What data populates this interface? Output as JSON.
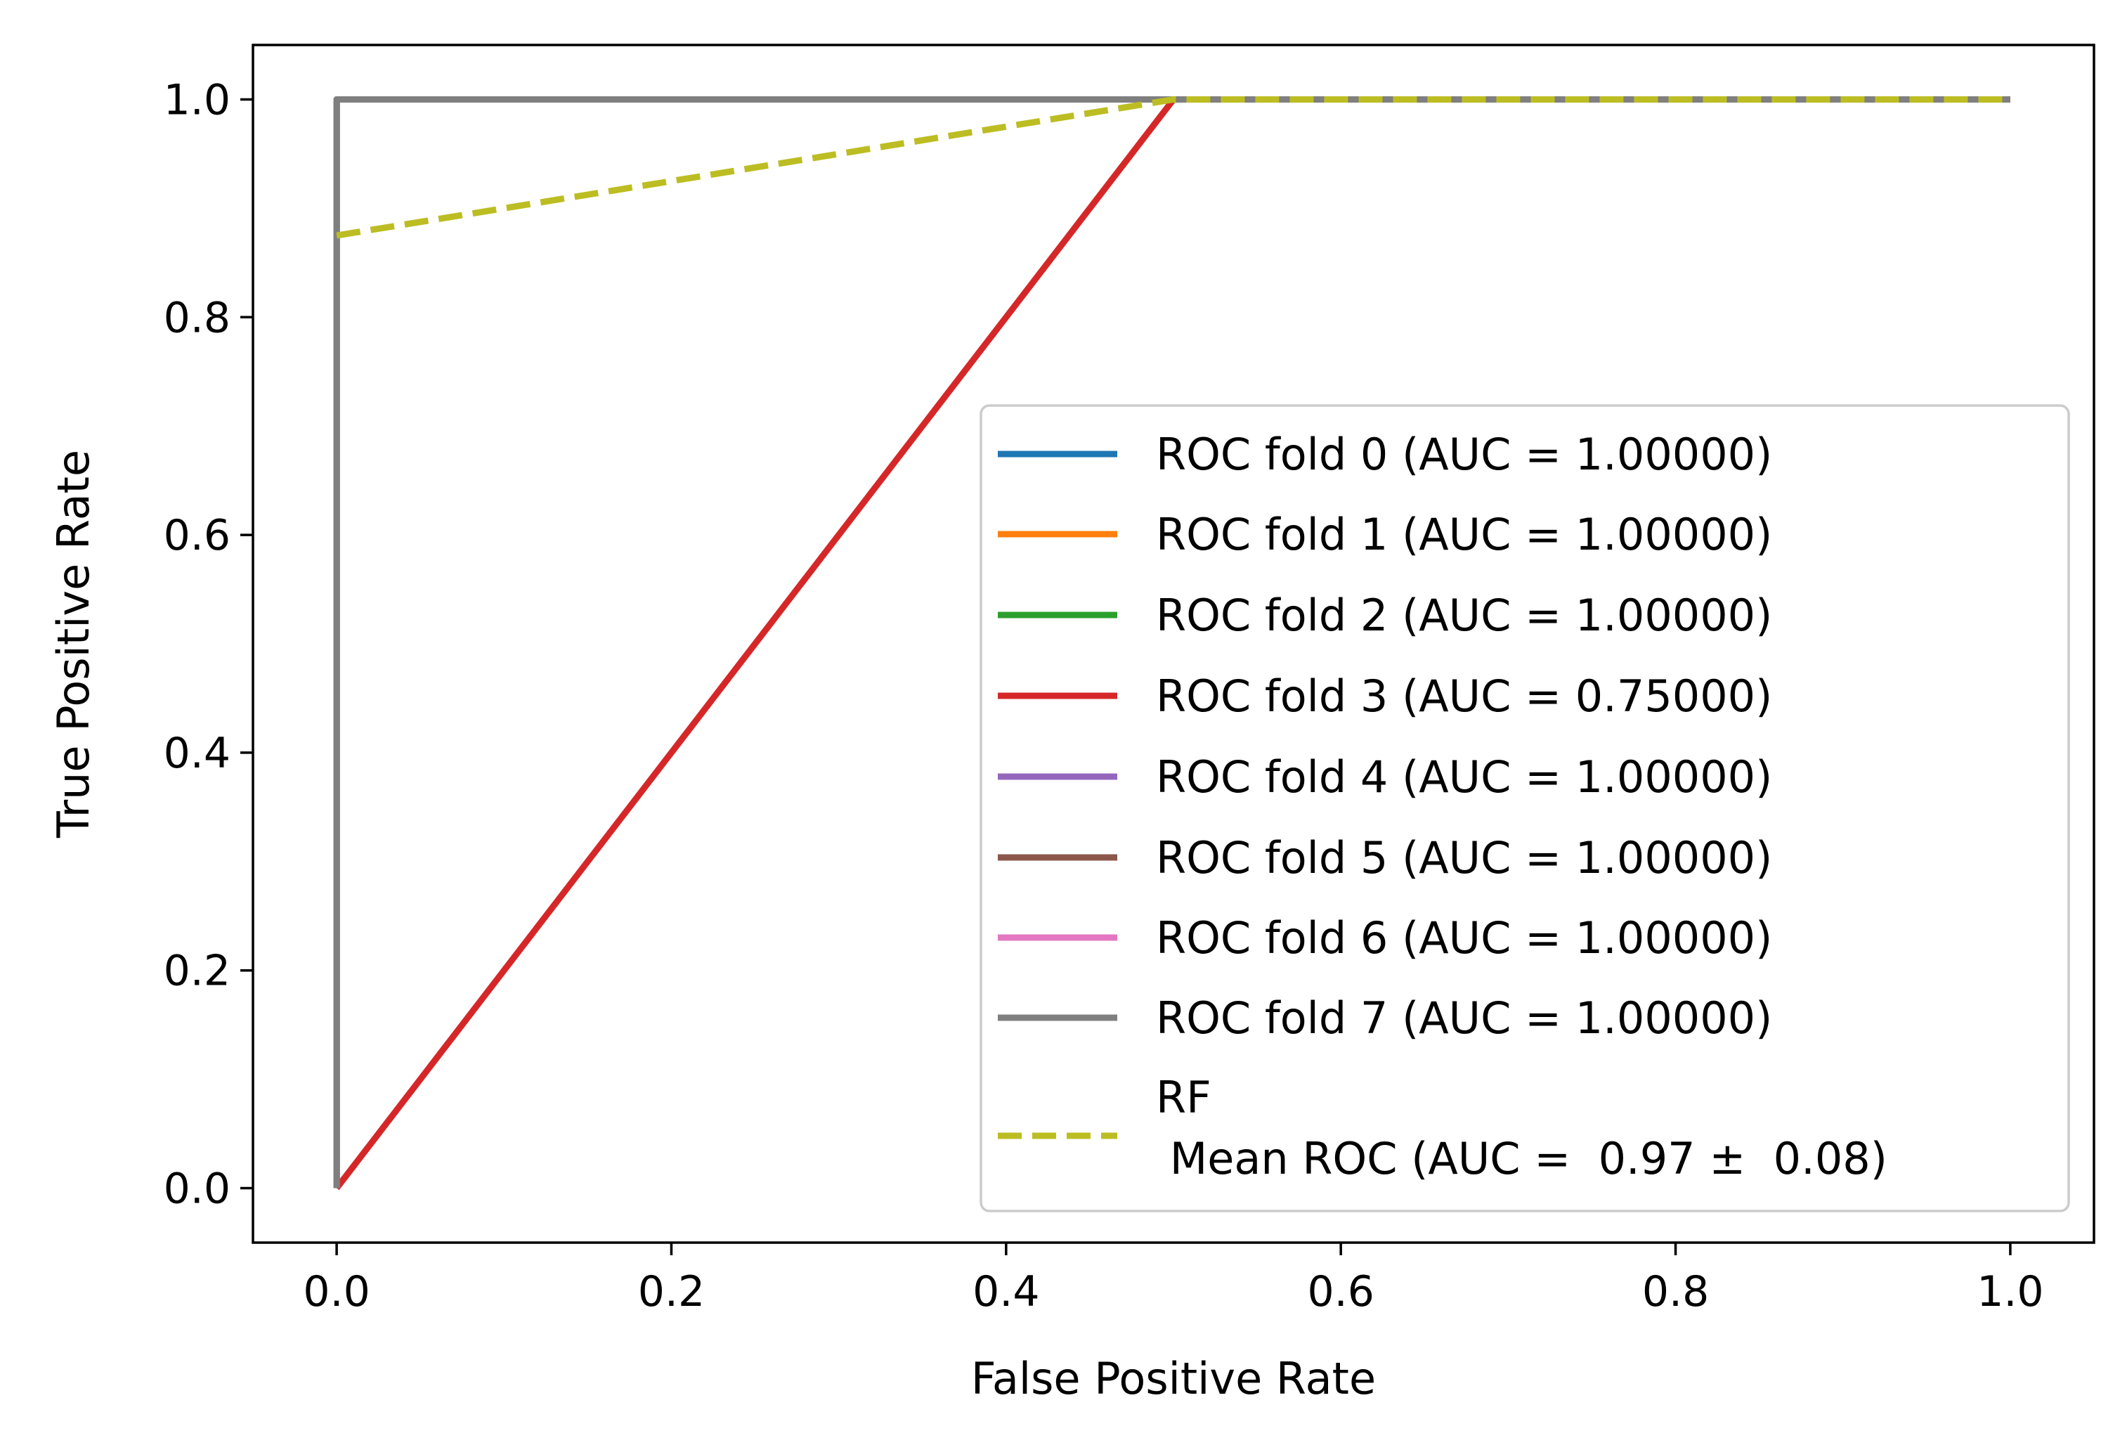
{
  "chart_data": {
    "type": "line",
    "title": "",
    "xlabel": "False Positive Rate",
    "ylabel": "True Positive Rate",
    "xlim": [
      -0.05,
      1.05
    ],
    "ylim": [
      -0.05,
      1.05
    ],
    "xticks": [
      0.0,
      0.2,
      0.4,
      0.6,
      0.8,
      1.0
    ],
    "yticks": [
      0.0,
      0.2,
      0.4,
      0.6,
      0.8,
      1.0
    ],
    "xtick_labels": [
      "0.0",
      "0.2",
      "0.4",
      "0.6",
      "0.8",
      "1.0"
    ],
    "ytick_labels": [
      "0.0",
      "0.2",
      "0.4",
      "0.6",
      "0.8",
      "1.0"
    ],
    "grid": false,
    "legend_position": "lower-right",
    "series": [
      {
        "name": "ROC fold 0 (AUC =  1.00000)",
        "color": "#1f77b4",
        "dash": "solid",
        "x": [
          0,
          0,
          1
        ],
        "y": [
          0,
          1,
          1
        ]
      },
      {
        "name": "ROC fold 1 (AUC =  1.00000)",
        "color": "#ff7f0e",
        "dash": "solid",
        "x": [
          0,
          0,
          1
        ],
        "y": [
          0,
          1,
          1
        ]
      },
      {
        "name": "ROC fold 2 (AUC =  1.00000)",
        "color": "#2ca02c",
        "dash": "solid",
        "x": [
          0,
          0,
          1
        ],
        "y": [
          0,
          1,
          1
        ]
      },
      {
        "name": "ROC fold 3 (AUC =  0.75000)",
        "color": "#d62728",
        "dash": "solid",
        "x": [
          0,
          0.5,
          1
        ],
        "y": [
          0,
          1,
          1
        ]
      },
      {
        "name": "ROC fold 4 (AUC =  1.00000)",
        "color": "#9467bd",
        "dash": "solid",
        "x": [
          0,
          0,
          1
        ],
        "y": [
          0,
          1,
          1
        ]
      },
      {
        "name": "ROC fold 5 (AUC =  1.00000)",
        "color": "#8c564b",
        "dash": "solid",
        "x": [
          0,
          0,
          1
        ],
        "y": [
          0,
          1,
          1
        ]
      },
      {
        "name": "ROC fold 6 (AUC =  1.00000)",
        "color": "#e377c2",
        "dash": "solid",
        "x": [
          0,
          0,
          1
        ],
        "y": [
          0,
          1,
          1
        ]
      },
      {
        "name": "ROC fold 7 (AUC =  1.00000)",
        "color": "#7f7f7f",
        "dash": "solid",
        "x": [
          0,
          0,
          1
        ],
        "y": [
          0,
          1,
          1
        ]
      },
      {
        "name": "RF\n Mean ROC (AUC =  0.97 ±  0.08)",
        "color": "#bcbd22",
        "dash": "dashed",
        "x": [
          0,
          0.5,
          1
        ],
        "y": [
          0.875,
          1,
          1
        ]
      }
    ]
  }
}
